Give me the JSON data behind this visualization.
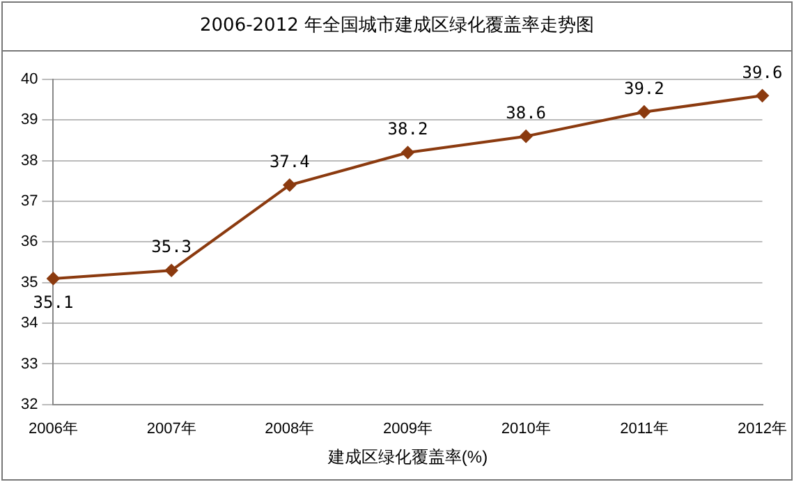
{
  "chart_data": {
    "type": "line",
    "title": "2006-2012 年全国城市建成区绿化覆盖率走势图",
    "xlabel": "建成区绿化覆盖率(%)",
    "categories": [
      "2006年",
      "2007年",
      "2008年",
      "2009年",
      "2010年",
      "2011年",
      "2012年"
    ],
    "series": [
      {
        "color": "#8b3a0f",
        "values": [
          35.1,
          35.3,
          37.4,
          38.2,
          38.6,
          39.2,
          39.6
        ]
      }
    ],
    "ylim": [
      32,
      40
    ],
    "yticks": [
      32,
      33,
      34,
      35,
      36,
      37,
      38,
      39,
      40
    ],
    "grid": "y",
    "marker": "diamond",
    "line_style": "solid",
    "data_labels": true,
    "legend": false
  }
}
